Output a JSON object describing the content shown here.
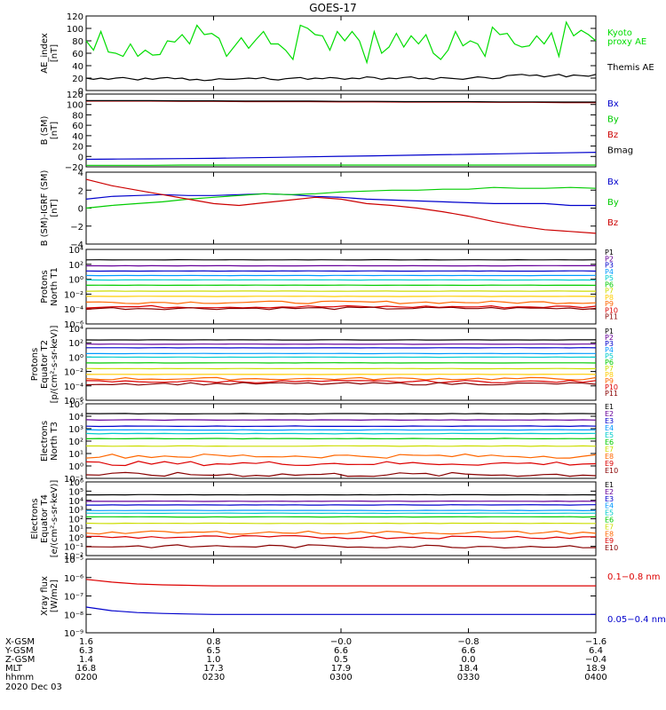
{
  "title": "GOES-17",
  "date": "2020 Dec 03",
  "chart_data": [
    {
      "id": "ae",
      "type": "line",
      "ylabel": [
        "AE_index",
        "[nT]"
      ],
      "ylim": [
        0,
        120
      ],
      "yticks": [
        "0",
        "20",
        "40",
        "60",
        "80",
        "100",
        "120"
      ],
      "series": [
        {
          "name": "Kyoto",
          "label_lines": [
            "Kyoto",
            "proxy AE"
          ],
          "color": "#00dd00",
          "values": [
            80,
            65,
            95,
            62,
            60,
            55,
            75,
            55,
            65,
            57,
            58,
            80,
            78,
            90,
            75,
            105,
            90,
            92,
            84,
            55,
            70,
            85,
            68,
            82,
            95,
            75,
            75,
            65,
            50,
            105,
            100,
            90,
            88,
            65,
            95,
            80,
            95,
            80,
            45,
            95,
            60,
            70,
            92,
            70,
            88,
            75,
            90,
            60,
            50,
            65,
            95,
            72,
            80,
            75,
            55,
            102,
            90,
            92,
            75,
            70,
            72,
            88,
            75,
            93,
            55,
            110,
            88,
            97,
            90,
            80
          ]
        },
        {
          "name": "Themis AE",
          "label_lines": [
            "Themis AE"
          ],
          "color": "#000000",
          "values": [
            20,
            18,
            20,
            18,
            20,
            21,
            19,
            17,
            20,
            18,
            20,
            21,
            19,
            20,
            17,
            18,
            16,
            17,
            19,
            18,
            18,
            19,
            20,
            19,
            21,
            18,
            17,
            19,
            20,
            21,
            18,
            20,
            19,
            21,
            20,
            18,
            20,
            19,
            22,
            21,
            18,
            20,
            19,
            21,
            22,
            19,
            20,
            18,
            21,
            20,
            19,
            18,
            20,
            22,
            21,
            19,
            20,
            24,
            25,
            26,
            24,
            25,
            22,
            24,
            26,
            22,
            25,
            24,
            23,
            26
          ]
        }
      ]
    },
    {
      "id": "bsm",
      "type": "line",
      "ylabel": [
        "B (SM)",
        "[nT]"
      ],
      "ylim": [
        -25,
        120
      ],
      "yticks": [
        "−20",
        "0",
        "20",
        "40",
        "60",
        "80",
        "100",
        "120"
      ],
      "series": [
        {
          "name": "Bx",
          "color": "#0000cc",
          "values": [
            -10,
            -9.5,
            -9,
            -8.5,
            -8,
            -7,
            -6,
            -5,
            -4,
            -3,
            -2,
            -1,
            0,
            1,
            2,
            3,
            4
          ]
        },
        {
          "name": "By",
          "color": "#00cc00",
          "values": [
            -22,
            -22,
            -22,
            -21.5,
            -21.5,
            -21.5,
            -21.5,
            -21.5,
            -21.5,
            -21.5,
            -21.5,
            -21.5,
            -21.5,
            -21.5,
            -21.5,
            -21.5,
            -21.5
          ]
        },
        {
          "name": "Bz",
          "color": "#cc0000",
          "values": [
            106,
            106,
            106,
            105.5,
            105.5,
            105,
            105,
            105,
            104.5,
            104.5,
            104,
            104,
            104,
            103.5,
            103.5,
            103,
            103
          ]
        },
        {
          "name": "Bmag",
          "color": "#000000",
          "values": [
            107,
            107,
            107,
            106.5,
            106.5,
            106,
            106,
            106,
            105.5,
            105.5,
            105,
            105,
            105,
            104.5,
            104.5,
            104,
            104
          ]
        }
      ]
    },
    {
      "id": "bdiff",
      "type": "line",
      "ylabel": [
        "B (SM)-IGRF (SM)",
        "[nT]"
      ],
      "ylim": [
        -4,
        4
      ],
      "yticks": [
        "−4",
        "−2",
        "0",
        "2",
        "4"
      ],
      "series": [
        {
          "name": "Bx",
          "color": "#0000cc",
          "values": [
            1.0,
            1.3,
            1.4,
            1.5,
            1.4,
            1.4,
            1.5,
            1.6,
            1.5,
            1.3,
            1.2,
            1.0,
            0.9,
            0.8,
            0.7,
            0.6,
            0.5,
            0.5,
            0.5,
            0.3,
            0.3
          ]
        },
        {
          "name": "By",
          "color": "#00cc00",
          "values": [
            0.0,
            0.3,
            0.5,
            0.7,
            1.0,
            1.2,
            1.4,
            1.6,
            1.5,
            1.6,
            1.8,
            1.9,
            2.0,
            2.0,
            2.1,
            2.1,
            2.3,
            2.2,
            2.2,
            2.3,
            2.2
          ]
        },
        {
          "name": "Bz",
          "color": "#cc0000",
          "values": [
            3.2,
            2.5,
            2.0,
            1.5,
            1.0,
            0.5,
            0.3,
            0.6,
            0.9,
            1.2,
            1.0,
            0.5,
            0.3,
            0.0,
            -0.4,
            -0.9,
            -1.5,
            -2.0,
            -2.4,
            -2.6,
            -2.8
          ]
        }
      ]
    },
    {
      "id": "pnorth",
      "type": "line",
      "log": true,
      "ylabel": [
        "Protons",
        "North T1"
      ],
      "ylim_exp": [
        -6,
        4
      ],
      "yticks": [
        "10⁻⁶",
        "10⁻⁴",
        "10⁻²",
        "10⁰",
        "10²",
        "10⁴"
      ],
      "channels": [
        {
          "name": "P1",
          "color": "#000000",
          "value_exp": 2.6
        },
        {
          "name": "P2",
          "color": "#660099",
          "value_exp": 1.8
        },
        {
          "name": "P3",
          "color": "#0000cc",
          "value_exp": 1.1
        },
        {
          "name": "P4",
          "color": "#0099ff",
          "value_exp": 0.5
        },
        {
          "name": "P5",
          "color": "#00cccc",
          "value_exp": -0.1
        },
        {
          "name": "P6",
          "color": "#00cc00",
          "value_exp": -0.8
        },
        {
          "name": "P7",
          "color": "#ccdd00",
          "value_exp": -1.6
        },
        {
          "name": "P8",
          "color": "#ffcc00",
          "value_exp": -2.3
        },
        {
          "name": "P9",
          "color": "#ff6600",
          "value_exp": -3.1
        },
        {
          "name": "P10",
          "color": "#dd0000",
          "value_exp": -3.7
        },
        {
          "name": "P11",
          "color": "#880000",
          "value_exp": -3.9
        }
      ]
    },
    {
      "id": "pequator",
      "type": "line",
      "log": true,
      "ylabel": [
        "Protons",
        "Equator T2",
        "[p/(cm²-s-sr-keV)]"
      ],
      "ylim_exp": [
        -6,
        4
      ],
      "yticks": [
        "10⁻⁶",
        "10⁻⁴",
        "10⁻²",
        "10⁰",
        "10²",
        "10⁴"
      ],
      "channels": [
        {
          "name": "P1",
          "color": "#000000",
          "value_exp": 2.4
        },
        {
          "name": "P2",
          "color": "#660099",
          "value_exp": 1.8
        },
        {
          "name": "P3",
          "color": "#0000cc",
          "value_exp": 1.3
        },
        {
          "name": "P4",
          "color": "#0099ff",
          "value_exp": 0.5
        },
        {
          "name": "P5",
          "color": "#00cccc",
          "value_exp": 0.0
        },
        {
          "name": "P6",
          "color": "#00cc00",
          "value_exp": -0.8
        },
        {
          "name": "P7",
          "color": "#ccdd00",
          "value_exp": -1.6
        },
        {
          "name": "P8",
          "color": "#ffcc00",
          "value_exp": -2.4
        },
        {
          "name": "P9",
          "color": "#ff6600",
          "value_exp": -3.0
        },
        {
          "name": "P10",
          "color": "#dd0000",
          "value_exp": -3.4
        },
        {
          "name": "P11",
          "color": "#880000",
          "value_exp": -3.7
        }
      ]
    },
    {
      "id": "enorth",
      "type": "line",
      "log": true,
      "ylabel": [
        "Electrons",
        "North T3"
      ],
      "ylim_exp": [
        -1,
        5
      ],
      "yticks": [
        "10⁻¹",
        "10⁰",
        "10¹",
        "10²",
        "10³",
        "10⁴",
        "10⁵"
      ],
      "channels": [
        {
          "name": "E1",
          "color": "#000000",
          "value_exp": 4.2
        },
        {
          "name": "E2",
          "color": "#660099",
          "value_exp": 3.7
        },
        {
          "name": "E3",
          "color": "#0000cc",
          "value_exp": 3.2
        },
        {
          "name": "E4",
          "color": "#0099ff",
          "value_exp": 2.9
        },
        {
          "name": "E5",
          "color": "#00cccc",
          "value_exp": 2.6
        },
        {
          "name": "E6",
          "color": "#00cc00",
          "value_exp": 2.2
        },
        {
          "name": "E7",
          "color": "#ccdd00",
          "value_exp": 1.6
        },
        {
          "name": "E8",
          "color": "#ff6600",
          "value_exp": 0.8
        },
        {
          "name": "E9",
          "color": "#dd0000",
          "value_exp": 0.2
        },
        {
          "name": "E10",
          "color": "#880000",
          "value_exp": -0.7
        }
      ]
    },
    {
      "id": "eequator",
      "type": "line",
      "log": true,
      "ylabel": [
        "Electrons",
        "Equator T4",
        "[e/(cm²-s-sr-keV)]"
      ],
      "ylim_exp": [
        -2,
        6
      ],
      "yticks": [
        "10⁻²",
        "10⁻¹",
        "10⁰",
        "10¹",
        "10²",
        "10³",
        "10⁴",
        "10⁵",
        "10⁶"
      ],
      "channels": [
        {
          "name": "E1",
          "color": "#000000",
          "value_exp": 4.6
        },
        {
          "name": "E2",
          "color": "#660099",
          "value_exp": 3.9
        },
        {
          "name": "E3",
          "color": "#0000cc",
          "value_exp": 3.5
        },
        {
          "name": "E4",
          "color": "#0099ff",
          "value_exp": 2.9
        },
        {
          "name": "E5",
          "color": "#00cccc",
          "value_exp": 2.6
        },
        {
          "name": "E6",
          "color": "#00cc00",
          "value_exp": 2.2
        },
        {
          "name": "E7",
          "color": "#ccdd00",
          "value_exp": 1.5
        },
        {
          "name": "E8",
          "color": "#ff6600",
          "value_exp": 0.5
        },
        {
          "name": "E9",
          "color": "#dd0000",
          "value_exp": 0.0
        },
        {
          "name": "E10",
          "color": "#880000",
          "value_exp": -1.0
        }
      ]
    },
    {
      "id": "xray",
      "type": "line",
      "log": true,
      "ylabel": [
        "Xray flux",
        "[W/m2]"
      ],
      "ylim_exp": [
        -9,
        -5
      ],
      "yticks": [
        "10⁻⁹",
        "10⁻⁸",
        "10⁻⁷",
        "10⁻⁶",
        "10⁻⁵"
      ],
      "series": [
        {
          "name": "0.1−0.8 nm",
          "color": "#dd0000",
          "values_exp": [
            -6.1,
            -6.25,
            -6.35,
            -6.4,
            -6.42,
            -6.45,
            -6.45,
            -6.45,
            -6.45,
            -6.45,
            -6.45,
            -6.45,
            -6.45,
            -6.45,
            -6.45,
            -6.45,
            -6.45,
            -6.45,
            -6.45,
            -6.45,
            -6.45
          ]
        },
        {
          "name": "0.05−0.4 nm",
          "color": "#0000cc",
          "values_exp": [
            -7.6,
            -7.8,
            -7.9,
            -7.95,
            -7.98,
            -8.0,
            -8.0,
            -8.0,
            -8.0,
            -8.0,
            -8.0,
            -8.0,
            -8.0,
            -8.0,
            -8.0,
            -8.0,
            -8.0,
            -8.0,
            -8.0,
            -8.0,
            -8.0
          ]
        }
      ]
    }
  ],
  "xaxis": {
    "row_labels": [
      "X-GSM",
      "Y-GSM",
      "Z-GSM",
      "MLT",
      "hhmm"
    ],
    "columns": [
      [
        "1.6",
        "6.3",
        "1.4",
        "16.8",
        "0200"
      ],
      [
        "0.8",
        "6.5",
        "1.0",
        "17.3",
        "0230"
      ],
      [
        "−0.0",
        "6.6",
        "0.5",
        "17.9",
        "0300"
      ],
      [
        "−0.8",
        "6.6",
        "0.0",
        "18.4",
        "0330"
      ],
      [
        "−1.6",
        "6.4",
        "−0.4",
        "18.9",
        "0400"
      ]
    ]
  }
}
